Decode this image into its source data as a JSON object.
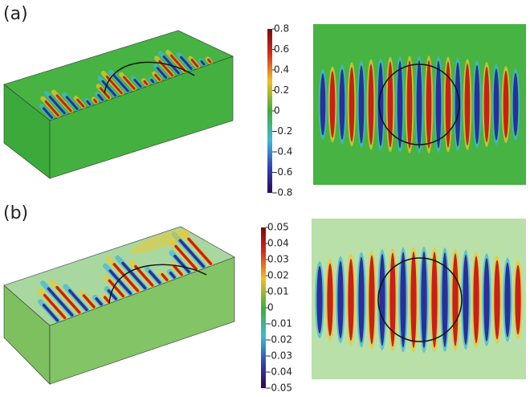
{
  "panels": [
    {
      "label": "(a)",
      "colorbar": {
        "lim": [
          -0.8,
          0.8
        ],
        "ticks": [
          0.8,
          0.6,
          0.4,
          0.2,
          0,
          -0.2,
          -0.4,
          -0.6,
          -0.8
        ]
      }
    },
    {
      "label": "(b)",
      "colorbar": {
        "lim": [
          -0.05,
          0.05
        ],
        "ticks": [
          0.05,
          0.04,
          0.03,
          0.02,
          0.01,
          0,
          -0.01,
          -0.02,
          -0.03,
          -0.04,
          -0.05
        ]
      }
    }
  ]
}
